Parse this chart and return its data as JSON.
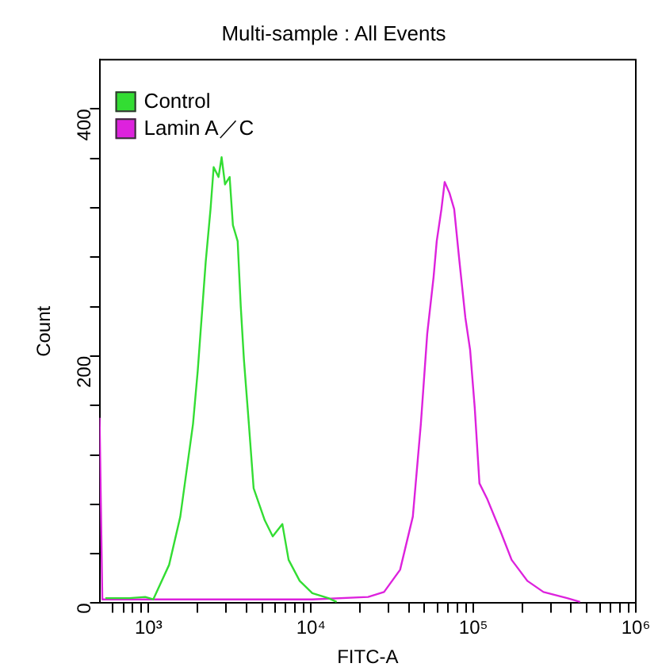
{
  "chart_data": {
    "type": "line",
    "title": "Multi-sample : All Events",
    "xlabel": "FITC-A",
    "ylabel": "Count",
    "log": "x",
    "xlim": [
      500,
      1000000
    ],
    "ylim": [
      0,
      440
    ],
    "xticks": [
      {
        "value": 600,
        "label": null
      },
      {
        "value": 700,
        "label": null
      },
      {
        "value": 800,
        "label": null
      },
      {
        "value": 900,
        "label": null
      },
      {
        "value": 1000,
        "label": "10³"
      },
      {
        "value": 2000,
        "label": null
      },
      {
        "value": 3000,
        "label": null
      },
      {
        "value": 4000,
        "label": null
      },
      {
        "value": 5000,
        "label": null
      },
      {
        "value": 6000,
        "label": null
      },
      {
        "value": 7000,
        "label": null
      },
      {
        "value": 8000,
        "label": null
      },
      {
        "value": 9000,
        "label": null
      },
      {
        "value": 10000,
        "label": "10⁴"
      },
      {
        "value": 20000,
        "label": null
      },
      {
        "value": 30000,
        "label": null
      },
      {
        "value": 40000,
        "label": null
      },
      {
        "value": 50000,
        "label": null
      },
      {
        "value": 60000,
        "label": null
      },
      {
        "value": 70000,
        "label": null
      },
      {
        "value": 80000,
        "label": null
      },
      {
        "value": 90000,
        "label": null
      },
      {
        "value": 100000,
        "label": "10⁵"
      },
      {
        "value": 200000,
        "label": null
      },
      {
        "value": 300000,
        "label": null
      },
      {
        "value": 400000,
        "label": null
      },
      {
        "value": 500000,
        "label": null
      },
      {
        "value": 600000,
        "label": null
      },
      {
        "value": 700000,
        "label": null
      },
      {
        "value": 800000,
        "label": null
      },
      {
        "value": 900000,
        "label": null
      },
      {
        "value": 1000000,
        "label": "10⁶"
      }
    ],
    "yticks": [
      0,
      {
        "value": 40,
        "label": null
      },
      {
        "value": 80,
        "label": null
      },
      {
        "value": 120,
        "label": null
      },
      {
        "value": 160,
        "label": null
      },
      200,
      {
        "value": 240,
        "label": null
      },
      {
        "value": 280,
        "label": null
      },
      {
        "value": 320,
        "label": null
      },
      {
        "value": 360,
        "label": null
      },
      400
    ],
    "grid": false,
    "legend": "top left",
    "marker": "none",
    "line_style": "solid",
    "series": [
      {
        "name": "Control",
        "color": "#33dd33",
        "x": [
          543,
          762,
          955,
          1070,
          1340,
          1570,
          1880,
          2010,
          2250,
          2410,
          2520,
          2700,
          2820,
          2960,
          3160,
          3310,
          3540,
          3700,
          3870,
          4150,
          4440,
          5200,
          5820,
          6670,
          7290,
          8530,
          10200,
          12800,
          14400
        ],
        "values": [
          4,
          4,
          5,
          3,
          31,
          70,
          145,
          188,
          276,
          319,
          353,
          345,
          361,
          339,
          345,
          306,
          293,
          240,
          197,
          145,
          93,
          67,
          54,
          64,
          35,
          18,
          8,
          4,
          1
        ]
      },
      {
        "name": "Lamin A／C",
        "color": "#dd22dd",
        "x": [
          500,
          520,
          1070,
          3310,
          10200,
          22500,
          28200,
          35400,
          42400,
          47500,
          52000,
          56900,
          59500,
          63600,
          66600,
          71300,
          76200,
          81600,
          89300,
          95500,
          102000,
          109000,
          122000,
          147000,
          172000,
          215000,
          270000,
          378000,
          454000
        ],
        "values": [
          150,
          3,
          3,
          3,
          3,
          5,
          9,
          27,
          70,
          145,
          218,
          264,
          293,
          319,
          341,
          332,
          319,
          280,
          231,
          205,
          158,
          97,
          84,
          58,
          35,
          18,
          9,
          4,
          1
        ]
      }
    ]
  }
}
